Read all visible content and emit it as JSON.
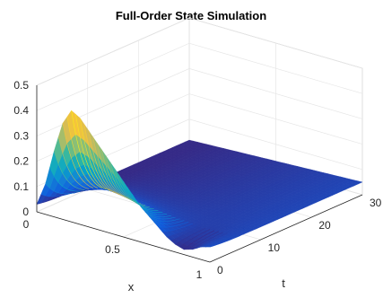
{
  "chart_data": {
    "type": "surface",
    "title": "Full-Order State Simulation",
    "xlabel": "x",
    "ylabel": "t",
    "zlabel": "",
    "xlim": [
      0,
      1
    ],
    "ylim": [
      0,
      30
    ],
    "zlim": [
      0,
      0.5
    ],
    "x_ticks": [
      "0",
      "0.5",
      "1"
    ],
    "y_ticks": [
      "0",
      "10",
      "20",
      "30"
    ],
    "z_ticks": [
      "0",
      "0.1",
      "0.2",
      "0.3",
      "0.4",
      "0.5"
    ],
    "grid": true,
    "colormap": [
      "#352a87",
      "#0f5cdd",
      "#1481d6",
      "#06a4ca",
      "#2eb7a4",
      "#87bf77",
      "#d1bb59",
      "#fec832",
      "#f9fb0e"
    ],
    "initial_profile": {
      "x": [
        0,
        0.05,
        0.1,
        0.15,
        0.2,
        0.25,
        0.3,
        0.35,
        0.4,
        0.45,
        0.5,
        0.55,
        0.6,
        0.65,
        0.7,
        0.75,
        0.8,
        0.85,
        0.9,
        0.95,
        1.0
      ],
      "z": [
        0.03,
        0.12,
        0.26,
        0.38,
        0.44,
        0.42,
        0.38,
        0.34,
        0.3,
        0.26,
        0.22,
        0.18,
        0.14,
        0.11,
        0.08,
        0.05,
        0.03,
        0.02,
        0.03,
        0.05,
        0.06
      ]
    },
    "decay_time": 3,
    "steady_level": 0.05
  }
}
